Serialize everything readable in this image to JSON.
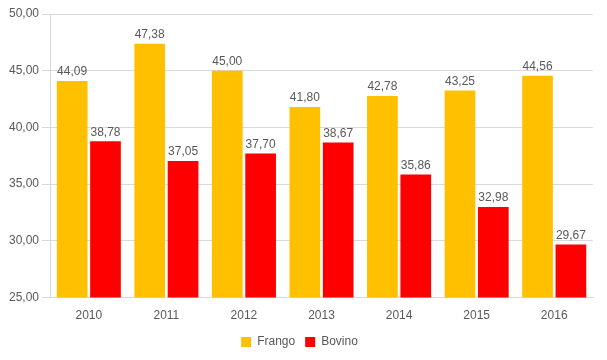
{
  "chart_data": {
    "type": "bar",
    "categories": [
      "2010",
      "2011",
      "2012",
      "2013",
      "2014",
      "2015",
      "2016"
    ],
    "series": [
      {
        "name": "Frango",
        "color": "#FFC000",
        "values": [
          44.09,
          47.38,
          45.0,
          41.8,
          42.78,
          43.25,
          44.56
        ],
        "value_labels": [
          "44,09",
          "47,38",
          "45,00",
          "41,80",
          "42,78",
          "43,25",
          "44,56"
        ]
      },
      {
        "name": "Bovino",
        "color": "#FF0000",
        "values": [
          38.78,
          37.05,
          37.7,
          38.67,
          35.86,
          32.98,
          29.67
        ],
        "value_labels": [
          "38,78",
          "37,05",
          "37,70",
          "38,67",
          "35,86",
          "32,98",
          "29,67"
        ]
      }
    ],
    "ylim": [
      25,
      50
    ],
    "yticks": [
      {
        "value": 25,
        "label": "25,00"
      },
      {
        "value": 30,
        "label": "30,00"
      },
      {
        "value": 35,
        "label": "35,00"
      },
      {
        "value": 40,
        "label": "40,00"
      },
      {
        "value": 45,
        "label": "45,00"
      },
      {
        "value": 50,
        "label": "50,00"
      }
    ],
    "grid": true,
    "legend": "bottom",
    "data_labels": true
  }
}
